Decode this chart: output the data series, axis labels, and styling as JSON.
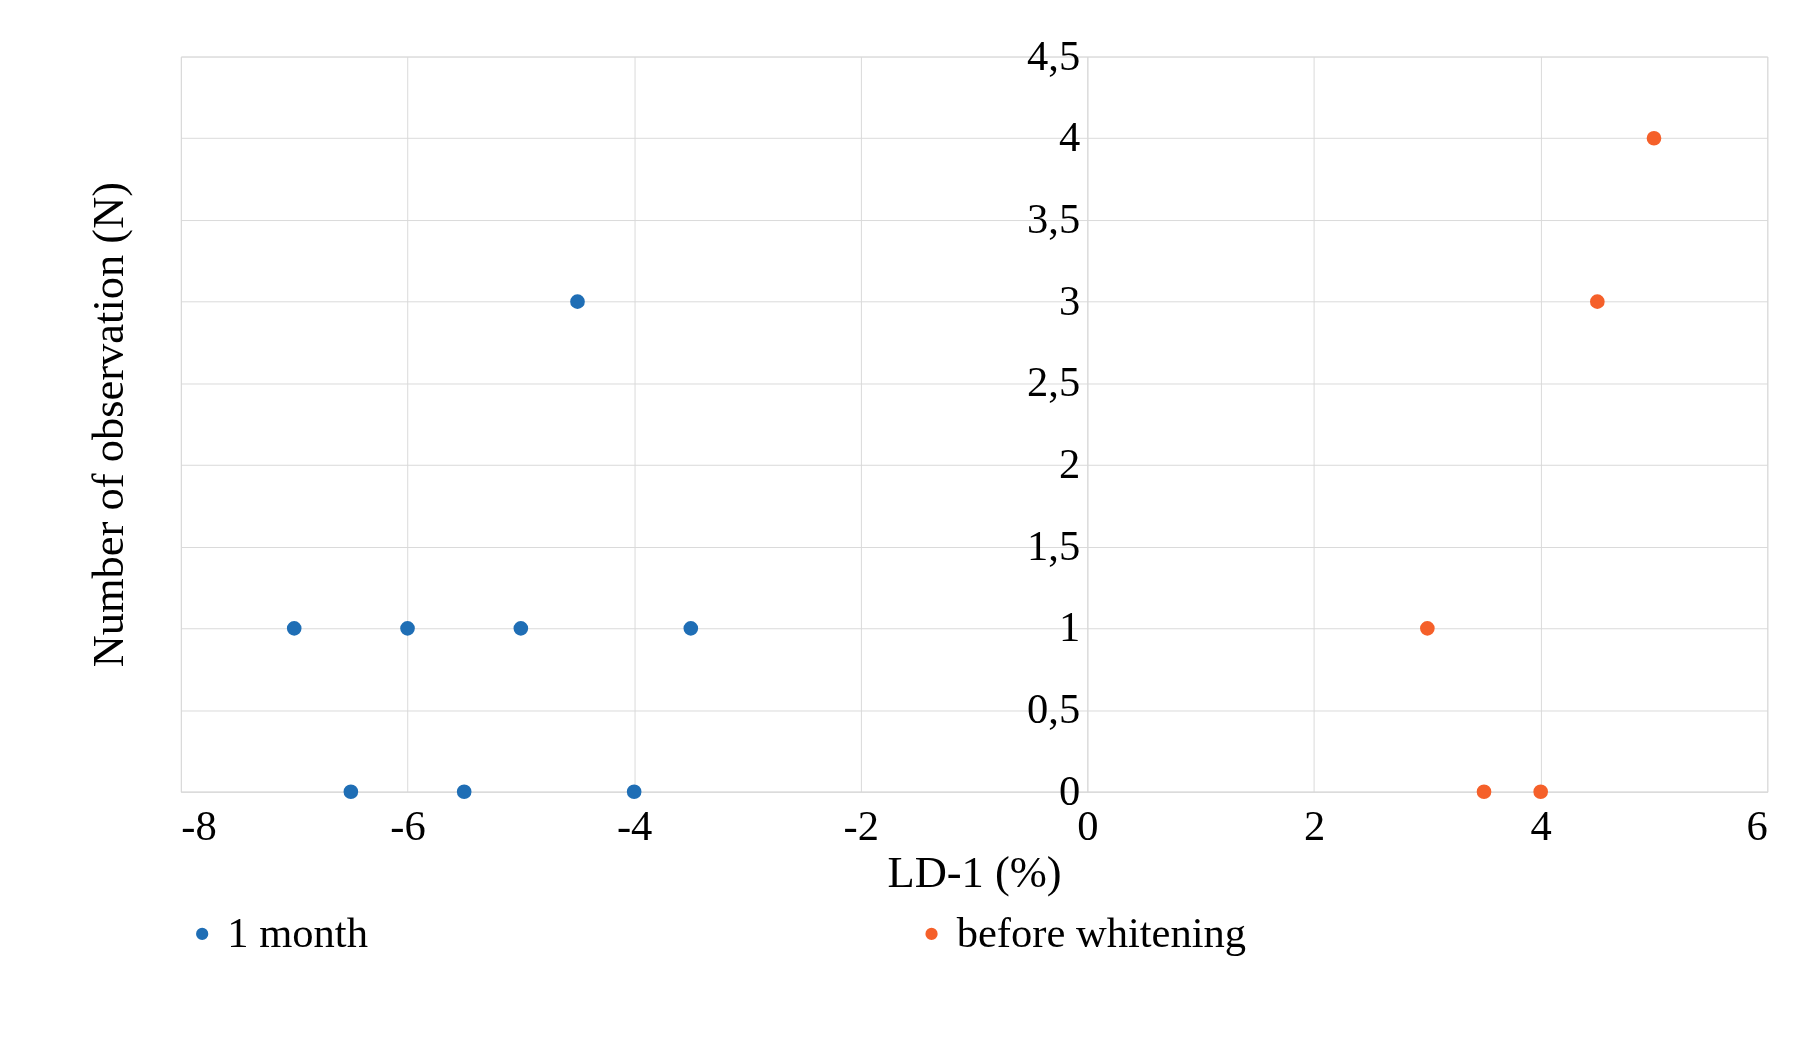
{
  "chart_data": {
    "type": "scatter",
    "xlabel": "LD-1 (%)",
    "ylabel": "Number of observation (N)",
    "series": [
      {
        "name": "1 month",
        "color": "#1f6eb5",
        "x": [
          -7,
          -6,
          -5,
          -3.5,
          -6.5,
          -5.5,
          -4,
          -4.5
        ],
        "values": [
          1,
          1,
          1,
          1,
          0,
          0,
          0,
          3
        ]
      },
      {
        "name": "before whitening",
        "color": "#f5602a",
        "x": [
          5,
          4.5,
          3,
          3.5,
          4
        ],
        "values": [
          4,
          3,
          1,
          0,
          0
        ]
      }
    ],
    "xlim": [
      -8,
      6
    ],
    "xticks": [
      -8,
      -6,
      -4,
      -2,
      0,
      2,
      4,
      6
    ],
    "ylim": [
      0,
      4.5
    ],
    "yticks": [
      0,
      {
        "value": 0.5,
        "label": "0,5"
      },
      1,
      {
        "value": 1.5,
        "label": "1,5"
      },
      2,
      {
        "value": 2.5,
        "label": "2,5"
      },
      3,
      {
        "value": 3.5,
        "label": "3,5"
      },
      4,
      {
        "value": 4.5,
        "label": "4,5"
      }
    ],
    "grid": true,
    "legend": "bottom",
    "marker": "circle"
  }
}
